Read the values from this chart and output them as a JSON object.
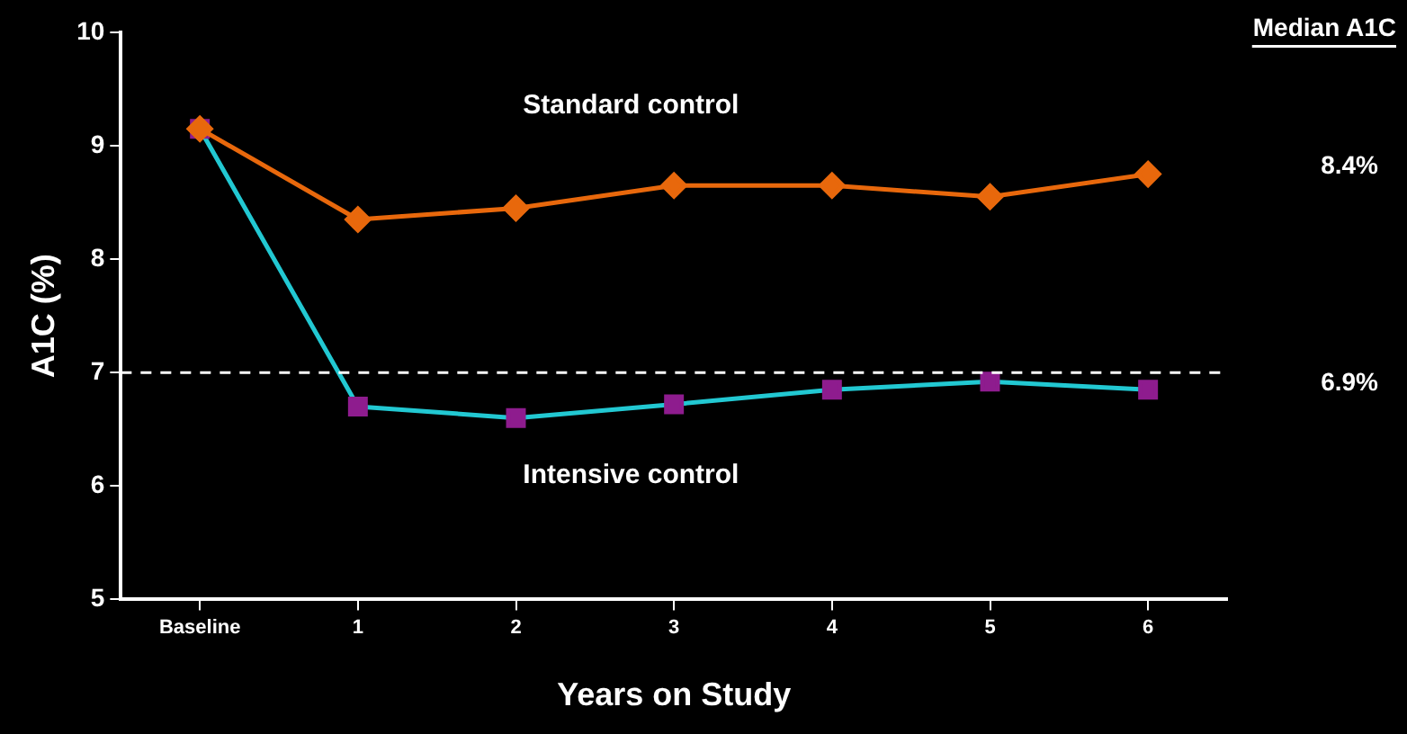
{
  "chart_data": {
    "type": "line",
    "xlabel": "Years on Study",
    "ylabel": "A1C (%)",
    "categories": [
      "Baseline",
      "1",
      "2",
      "3",
      "4",
      "5",
      "6"
    ],
    "series": [
      {
        "name": "Standard control",
        "color": "#e8680c",
        "marker": "diamond",
        "values": [
          9.15,
          8.35,
          8.45,
          8.65,
          8.65,
          8.55,
          8.75
        ]
      },
      {
        "name": "Intensive control",
        "color": "#22c8d2",
        "colors": [
          "#8e1c8e",
          "#8e1c8e",
          "#8e1c8e",
          "#8e1c8e",
          "#8e1c8e",
          "#8e1c8e",
          "#8e1c8e"
        ],
        "marker": "square",
        "values": [
          9.15,
          6.7,
          6.6,
          6.72,
          6.85,
          6.92,
          6.85
        ]
      }
    ],
    "ylim": [
      5,
      10
    ],
    "yticks": [
      5,
      6,
      7,
      8,
      9,
      10
    ],
    "ref_lines": [
      {
        "axis": "y",
        "value": 7,
        "color": "#ffffff",
        "line_style": "dashed"
      }
    ],
    "annotations": [
      "Median A1C",
      "8.4%",
      "6.9%"
    ],
    "line_style": "solid",
    "legend": false
  }
}
